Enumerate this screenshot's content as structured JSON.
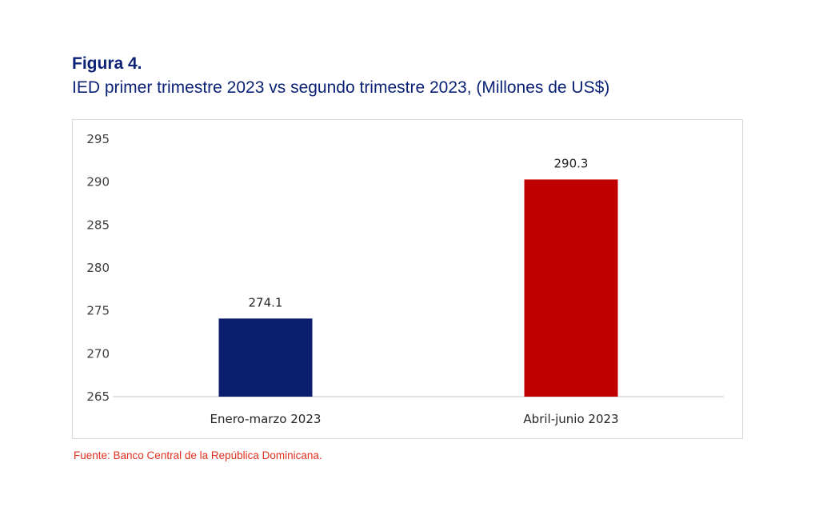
{
  "header": {
    "figure_label": "Figura 4.",
    "title": "IED primer trimestre 2023 vs segundo trimestre 2023, (Millones de US$)"
  },
  "footer": {
    "source": "Fuente: Banco Central de la República Dominicana."
  },
  "chart_data": {
    "type": "bar",
    "title": "",
    "xlabel": "",
    "ylabel": "",
    "categories": [
      "Enero-marzo 2023",
      "Abril-junio 2023"
    ],
    "values": [
      274.1,
      290.3
    ],
    "data_labels": [
      "274.1",
      "290.3"
    ],
    "bar_colors": [
      "#0b1f6e",
      "#c00000"
    ],
    "ylim": [
      265,
      295
    ],
    "yticks": [
      265,
      270,
      275,
      280,
      285,
      290,
      295
    ],
    "ytick_labels": [
      "265",
      "270",
      "275",
      "280",
      "285",
      "290",
      "295"
    ],
    "grid": false,
    "legend": "none"
  }
}
